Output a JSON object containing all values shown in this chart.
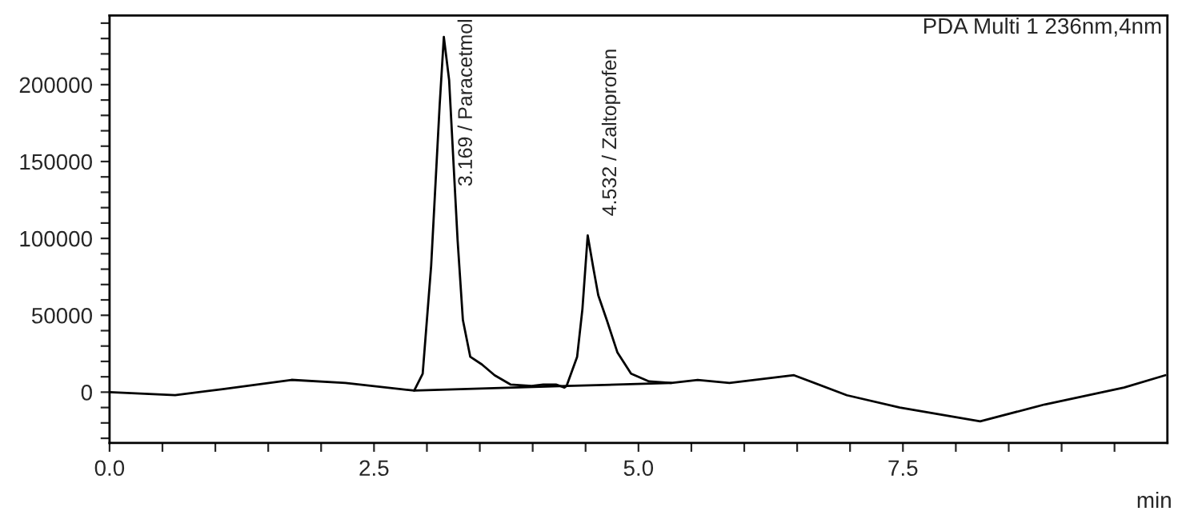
{
  "chart_data": {
    "type": "line",
    "xlabel": "min",
    "annotations": [
      {
        "text": "3.169 / Paracetmol",
        "x": 3.169,
        "y": 231000
      },
      {
        "text": "4.532 / Zaltoprofen",
        "x": 4.532,
        "y": 102000
      },
      "PDA Multi 1 236nm,4nm"
    ],
    "series": [
      {
        "color": "#000000",
        "x": [
          0,
          0.62,
          1.07,
          1.72,
          2.23,
          2.88,
          2.96,
          3.04,
          3.12,
          3.16,
          3.21,
          3.29,
          3.34,
          3.41,
          3.52,
          3.64,
          3.79,
          3.99,
          4.1,
          4.22,
          4.3,
          4.32,
          4.42,
          4.47,
          4.52,
          4.57,
          4.62,
          4.7,
          4.8,
          4.93,
          5.1,
          5.31,
          5.56,
          5.86,
          6.47,
          6.97,
          7.47,
          8.23,
          8.84,
          9.59,
          9.98
        ],
        "values": [
          0,
          -2000,
          2000,
          8000,
          6000,
          1000,
          12000,
          82000,
          186000,
          231000,
          203000,
          99000,
          47000,
          23000,
          18000,
          11000,
          5000,
          4000,
          5000,
          5000,
          3000,
          4000,
          23000,
          54000,
          102000,
          82000,
          63000,
          47000,
          26000,
          12000,
          7000,
          6000,
          8000,
          6000,
          11000,
          -2000,
          -10000,
          -19000,
          -8000,
          3000,
          11000
        ]
      },
      {
        "color": "#000000",
        "x": [
          2.88,
          4.32,
          5.31
        ],
        "values": [
          1000,
          4000,
          6000
        ]
      }
    ],
    "xlim": [
      0,
      10
    ],
    "ylim": [
      -33000,
      245000
    ],
    "xticks": [
      {
        "value": 0,
        "label": "0.0"
      },
      {
        "value": 0.5,
        "label": null
      },
      {
        "value": 1,
        "label": null
      },
      {
        "value": 1.5,
        "label": null
      },
      {
        "value": 2,
        "label": null
      },
      {
        "value": 2.5,
        "label": "2.5"
      },
      {
        "value": 3,
        "label": null
      },
      {
        "value": 3.5,
        "label": null
      },
      {
        "value": 4,
        "label": null
      },
      {
        "value": 4.5,
        "label": null
      },
      {
        "value": 5,
        "label": "5.0"
      },
      {
        "value": 5.5,
        "label": null
      },
      {
        "value": 6,
        "label": null
      },
      {
        "value": 6.5,
        "label": null
      },
      {
        "value": 7,
        "label": null
      },
      {
        "value": 7.5,
        "label": "7.5"
      },
      {
        "value": 8,
        "label": null
      },
      {
        "value": 8.5,
        "label": null
      },
      {
        "value": 9,
        "label": null
      },
      {
        "value": 9.5,
        "label": null
      }
    ],
    "yticks": [
      {
        "value": -30000,
        "label": null
      },
      {
        "value": -20000,
        "label": null
      },
      {
        "value": -10000,
        "label": null
      },
      0,
      {
        "value": 10000,
        "label": null
      },
      {
        "value": 20000,
        "label": null
      },
      {
        "value": 30000,
        "label": null
      },
      {
        "value": 40000,
        "label": null
      },
      50000,
      {
        "value": 60000,
        "label": null
      },
      {
        "value": 70000,
        "label": null
      },
      {
        "value": 80000,
        "label": null
      },
      {
        "value": 90000,
        "label": null
      },
      100000,
      {
        "value": 110000,
        "label": null
      },
      {
        "value": 120000,
        "label": null
      },
      {
        "value": 130000,
        "label": null
      },
      {
        "value": 140000,
        "label": null
      },
      150000,
      {
        "value": 160000,
        "label": null
      },
      {
        "value": 170000,
        "label": null
      },
      {
        "value": 180000,
        "label": null
      },
      {
        "value": 190000,
        "label": null
      },
      200000,
      {
        "value": 210000,
        "label": null
      },
      {
        "value": 220000,
        "label": null
      },
      {
        "value": 230000,
        "label": null
      },
      {
        "value": 240000,
        "label": null
      }
    ],
    "grid": false,
    "legend": false
  }
}
